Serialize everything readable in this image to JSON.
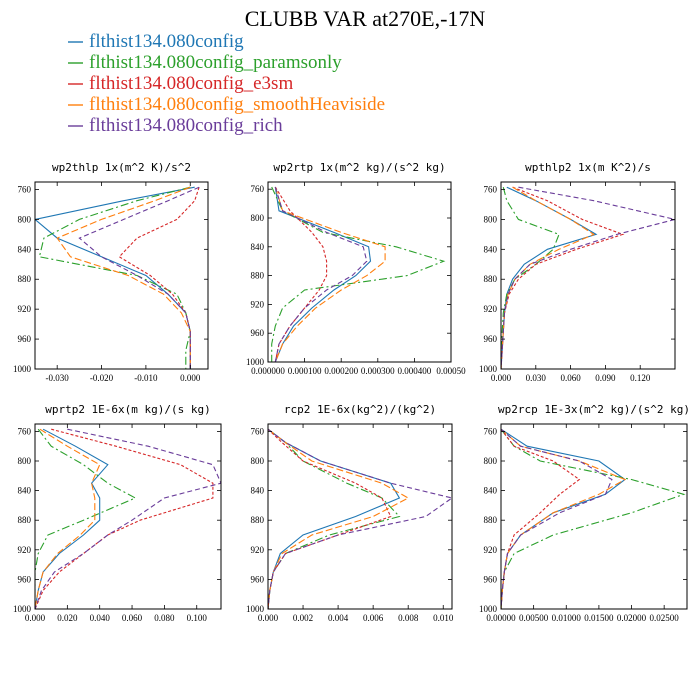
{
  "figure": {
    "title": "CLUBB VAR at270E,-17N"
  },
  "legend": [
    {
      "label": "flthist134.080config",
      "color": "#1f77b4",
      "dash": ""
    },
    {
      "label": "flthist134.080config_paramsonly",
      "color": "#2ca02c",
      "dash": "8 3 2 3"
    },
    {
      "label": "flthist134.080config_e3sm",
      "color": "#d62728",
      "dash": "3 2"
    },
    {
      "label": "flthist134.080config_smoothHeaviside",
      "color": "#ff7f0e",
      "dash": "7 3"
    },
    {
      "label": "flthist134.080config_rich",
      "color": "#6a3d9a",
      "dash": "5 3"
    }
  ],
  "chart_data": [
    {
      "type": "line",
      "title": "wp2thlp  1x(m^2 K)/s^2",
      "xlim": [
        -0.035,
        0.004
      ],
      "ylim": [
        1000,
        750
      ],
      "xticks": [
        -0.03,
        -0.02,
        -0.01,
        0.0
      ],
      "xticklabels": [
        "-0.030",
        "-0.020",
        "-0.010",
        "0.000"
      ],
      "yticks": [
        760,
        800,
        840,
        880,
        920,
        960,
        1000
      ],
      "y": [
        757,
        775,
        800,
        825,
        850,
        875,
        900,
        925,
        950,
        975,
        1000
      ],
      "series": [
        {
          "name": "flthist134.080config",
          "values": [
            0.001,
            -0.015,
            -0.035,
            -0.03,
            -0.02,
            -0.01,
            -0.005,
            -0.001,
            0.0,
            0.0,
            0.0
          ]
        },
        {
          "name": "flthist134.080config_paramsonly",
          "values": [
            0.0,
            -0.012,
            -0.025,
            -0.033,
            -0.034,
            -0.012,
            -0.003,
            -0.001,
            0.0,
            -0.001,
            -0.001
          ]
        },
        {
          "name": "flthist134.080config_e3sm",
          "values": [
            0.002,
            0.001,
            -0.003,
            -0.012,
            -0.016,
            -0.009,
            -0.004,
            -0.001,
            0.0,
            0.0,
            0.0
          ]
        },
        {
          "name": "flthist134.080config_smoothHeaviside",
          "values": [
            0.0,
            -0.008,
            -0.02,
            -0.03,
            -0.027,
            -0.014,
            -0.006,
            -0.002,
            0.0,
            0.0,
            0.0
          ]
        },
        {
          "name": "flthist134.080config_rich",
          "values": [
            0.002,
            -0.005,
            -0.015,
            -0.025,
            -0.02,
            -0.012,
            -0.005,
            -0.001,
            0.0,
            0.0,
            0.0
          ]
        }
      ]
    },
    {
      "type": "line",
      "title": "wp2rtp  1x(m^2 kg)/(s^2 kg)",
      "xlim": [
        0.0,
        0.0005
      ],
      "ylim": [
        1000,
        750
      ],
      "xticks": [
        0.0,
        0.0001,
        0.0002,
        0.0003,
        0.0004,
        0.0005
      ],
      "xticklabels": [
        "0.000000",
        "0.000100",
        "0.000200",
        "0.000300",
        "0.000400",
        "0.00050"
      ],
      "yticks": [
        760,
        800,
        840,
        880,
        920,
        960,
        1000
      ],
      "y": [
        757,
        790,
        820,
        840,
        860,
        880,
        900,
        925,
        950,
        975,
        1000
      ],
      "series": [
        {
          "name": "flthist134.080config",
          "values": [
            2e-05,
            3e-05,
            0.00018,
            0.000275,
            0.00028,
            0.00024,
            0.00018,
            0.00012,
            7e-05,
            4e-05,
            2e-05
          ]
        },
        {
          "name": "flthist134.080config_paramsonly",
          "values": [
            1e-05,
            4e-05,
            0.00015,
            0.00035,
            0.00048,
            0.00038,
            0.0001,
            4e-05,
            2e-05,
            1e-05,
            1e-05
          ]
        },
        {
          "name": "flthist134.080config_e3sm",
          "values": [
            2e-05,
            6e-05,
            0.00012,
            0.00015,
            0.00016,
            0.00016,
            0.00014,
            0.0001,
            6e-05,
            3e-05,
            2e-05
          ]
        },
        {
          "name": "flthist134.080config_smoothHeaviside",
          "values": [
            2e-05,
            4e-05,
            0.0002,
            0.00032,
            0.00032,
            0.00027,
            0.0002,
            0.00013,
            8e-05,
            4e-05,
            2e-05
          ]
        },
        {
          "name": "flthist134.080config_rich",
          "values": [
            2e-05,
            4e-05,
            0.00016,
            0.00026,
            0.00027,
            0.00023,
            0.00016,
            0.0001,
            6e-05,
            3e-05,
            2e-05
          ]
        }
      ]
    },
    {
      "type": "line",
      "title": "wpthlp2  1x(m K^2)/s",
      "xlim": [
        0.0,
        0.15
      ],
      "ylim": [
        1000,
        750
      ],
      "xticks": [
        0.0,
        0.03,
        0.06,
        0.09,
        0.12
      ],
      "xticklabels": [
        "0.000",
        "0.030",
        "0.060",
        "0.090",
        "0.120"
      ],
      "yticks": [
        760,
        800,
        840,
        880,
        920,
        960,
        1000
      ],
      "y": [
        757,
        775,
        800,
        820,
        840,
        860,
        880,
        900,
        925,
        950,
        975,
        1000
      ],
      "series": [
        {
          "name": "flthist134.080config",
          "values": [
            0.005,
            0.03,
            0.06,
            0.082,
            0.04,
            0.02,
            0.01,
            0.005,
            0.003,
            0.002,
            0.001,
            0.0
          ]
        },
        {
          "name": "flthist134.080config_paramsonly",
          "values": [
            0.002,
            0.005,
            0.015,
            0.05,
            0.045,
            0.03,
            0.012,
            0.005,
            0.002,
            0.001,
            0.0,
            0.0
          ]
        },
        {
          "name": "flthist134.080config_e3sm",
          "values": [
            0.01,
            0.04,
            0.07,
            0.105,
            0.065,
            0.03,
            0.015,
            0.007,
            0.003,
            0.002,
            0.001,
            0.0
          ]
        },
        {
          "name": "flthist134.080config_smoothHeaviside",
          "values": [
            0.01,
            0.03,
            0.06,
            0.08,
            0.05,
            0.025,
            0.012,
            0.006,
            0.003,
            0.002,
            0.001,
            0.0
          ]
        },
        {
          "name": "flthist134.080config_rich",
          "values": [
            0.015,
            0.08,
            0.15,
            0.1,
            0.06,
            0.025,
            0.012,
            0.006,
            0.003,
            0.002,
            0.001,
            0.0
          ]
        }
      ]
    },
    {
      "type": "line",
      "title": "wprtp2  1E-6x(m kg)/(s kg)",
      "xlim": [
        0.0,
        0.115
      ],
      "ylim": [
        1000,
        750
      ],
      "xticks": [
        0.0,
        0.02,
        0.04,
        0.06,
        0.08,
        0.1
      ],
      "xticklabels": [
        "0.000",
        "0.020",
        "0.040",
        "0.060",
        "0.080",
        "0.100"
      ],
      "yticks": [
        760,
        800,
        840,
        880,
        920,
        960,
        1000
      ],
      "y": [
        757,
        780,
        805,
        830,
        850,
        880,
        900,
        925,
        950,
        975,
        1000
      ],
      "series": [
        {
          "name": "flthist134.080config",
          "values": [
            0.005,
            0.025,
            0.045,
            0.035,
            0.04,
            0.04,
            0.03,
            0.015,
            0.005,
            0.002,
            0.0
          ]
        },
        {
          "name": "flthist134.080config_paramsonly",
          "values": [
            0.002,
            0.01,
            0.03,
            0.045,
            0.062,
            0.03,
            0.008,
            0.002,
            0.0,
            0.0,
            0.0
          ]
        },
        {
          "name": "flthist134.080config_e3sm",
          "values": [
            0.01,
            0.05,
            0.09,
            0.11,
            0.11,
            0.065,
            0.045,
            0.03,
            0.015,
            0.005,
            0.0
          ]
        },
        {
          "name": "flthist134.080config_smoothHeaviside",
          "values": [
            0.003,
            0.02,
            0.04,
            0.035,
            0.037,
            0.037,
            0.028,
            0.014,
            0.005,
            0.002,
            0.0
          ]
        },
        {
          "name": "flthist134.080config_rich",
          "values": [
            0.02,
            0.07,
            0.11,
            0.115,
            0.08,
            0.06,
            0.045,
            0.03,
            0.012,
            0.004,
            0.0
          ]
        }
      ]
    },
    {
      "type": "line",
      "title": "rcp2  1E-6x(kg^2)/(kg^2)",
      "xlim": [
        0.0,
        0.0105
      ],
      "ylim": [
        1000,
        750
      ],
      "xticks": [
        0.0,
        0.002,
        0.004,
        0.006,
        0.008,
        0.01
      ],
      "xticklabels": [
        "0.000",
        "0.002",
        "0.004",
        "0.006",
        "0.008",
        "0.010"
      ],
      "yticks": [
        760,
        800,
        840,
        880,
        920,
        960,
        1000
      ],
      "y": [
        757,
        775,
        800,
        830,
        850,
        875,
        900,
        925,
        950,
        975,
        1000
      ],
      "series": [
        {
          "name": "flthist134.080config",
          "values": [
            0.0,
            0.001,
            0.003,
            0.007,
            0.0075,
            0.005,
            0.002,
            0.0007,
            0.0003,
            0.0001,
            0.0
          ]
        },
        {
          "name": "flthist134.080config_paramsonly",
          "values": [
            0.0,
            0.001,
            0.002,
            0.0045,
            0.0065,
            0.0075,
            0.0035,
            0.001,
            0.0003,
            0.0001,
            0.0
          ]
        },
        {
          "name": "flthist134.080config_e3sm",
          "values": [
            0.0,
            0.0008,
            0.002,
            0.005,
            0.0065,
            0.007,
            0.004,
            0.001,
            0.0003,
            0.0001,
            0.0
          ]
        },
        {
          "name": "flthist134.080config_smoothHeaviside",
          "values": [
            0.0,
            0.001,
            0.0025,
            0.0065,
            0.008,
            0.006,
            0.0025,
            0.0008,
            0.0003,
            0.0001,
            0.0
          ]
        },
        {
          "name": "flthist134.080config_rich",
          "values": [
            0.0,
            0.001,
            0.003,
            0.007,
            0.0105,
            0.009,
            0.004,
            0.001,
            0.0003,
            0.0001,
            0.0
          ]
        }
      ]
    },
    {
      "type": "line",
      "title": "wp2rcp  1E-3x(m^2 kg)/(s^2 kg)",
      "xlim": [
        0.0,
        0.0285
      ],
      "ylim": [
        1000,
        750
      ],
      "xticks": [
        0.0,
        0.005,
        0.01,
        0.015,
        0.02,
        0.025
      ],
      "xticklabels": [
        "0.00000",
        "0.00500",
        "0.01000",
        "0.01500",
        "0.02000",
        "0.02500"
      ],
      "yticks": [
        760,
        800,
        840,
        880,
        920,
        960,
        1000
      ],
      "y": [
        757,
        780,
        800,
        825,
        845,
        870,
        900,
        925,
        950,
        975,
        1000
      ],
      "series": [
        {
          "name": "flthist134.080config",
          "values": [
            0.0,
            0.004,
            0.015,
            0.019,
            0.016,
            0.008,
            0.003,
            0.001,
            0.0005,
            0.0002,
            0.0
          ]
        },
        {
          "name": "flthist134.080config_paramsonly",
          "values": [
            0.0,
            0.002,
            0.006,
            0.02,
            0.028,
            0.02,
            0.008,
            0.002,
            0.0005,
            0.0002,
            0.0
          ]
        },
        {
          "name": "flthist134.080config_e3sm",
          "values": [
            0.0,
            0.002,
            0.008,
            0.012,
            0.009,
            0.006,
            0.002,
            0.001,
            0.0005,
            0.0002,
            0.0
          ]
        },
        {
          "name": "flthist134.080config_smoothHeaviside",
          "values": [
            0.0,
            0.003,
            0.012,
            0.019,
            0.015,
            0.008,
            0.003,
            0.001,
            0.0005,
            0.0002,
            0.0
          ]
        },
        {
          "name": "flthist134.080config_rich",
          "values": [
            0.0,
            0.003,
            0.012,
            0.017,
            0.016,
            0.009,
            0.003,
            0.001,
            0.0005,
            0.0002,
            0.0
          ]
        }
      ]
    }
  ]
}
